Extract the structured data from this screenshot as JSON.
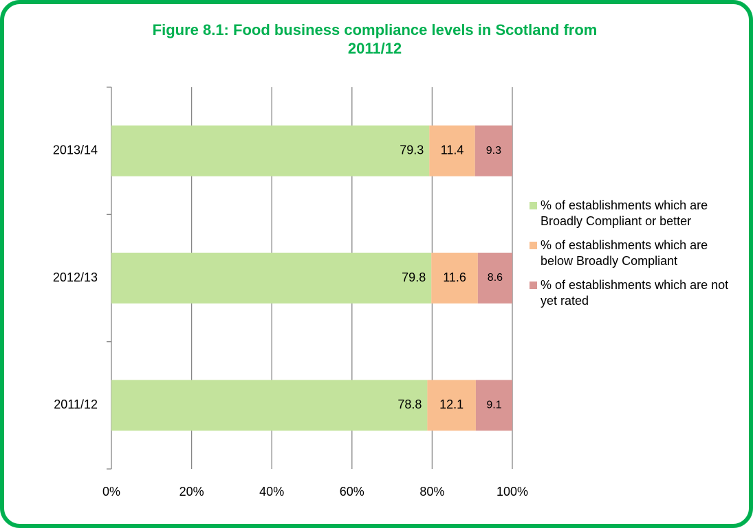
{
  "chart_data": {
    "type": "stacked-bar-horizontal",
    "title": "Figure 8.1: Food business compliance levels in Scotland from 2011/12",
    "categories": [
      "2013/14",
      "2012/13",
      "2011/12"
    ],
    "series": [
      {
        "name": "% of establishments which are Broadly Compliant or better",
        "color": "#c3e39c",
        "values": [
          79.3,
          79.8,
          78.8
        ]
      },
      {
        "name": "% of establishments which are below Broadly Compliant",
        "color": "#f9be8f",
        "values": [
          11.4,
          11.6,
          12.1
        ]
      },
      {
        "name": "% of establishments which are not yet rated",
        "color": "#d99694",
        "values": [
          9.3,
          8.6,
          9.1
        ]
      }
    ],
    "xlim": [
      0,
      100
    ],
    "xticks": [
      {
        "value": 0,
        "label": "0%"
      },
      {
        "value": 20,
        "label": "20%"
      },
      {
        "value": 40,
        "label": "40%"
      },
      {
        "value": 60,
        "label": "60%"
      },
      {
        "value": 80,
        "label": "80%"
      },
      {
        "value": 100,
        "label": "100%"
      }
    ],
    "grid": true,
    "legend": "right"
  }
}
